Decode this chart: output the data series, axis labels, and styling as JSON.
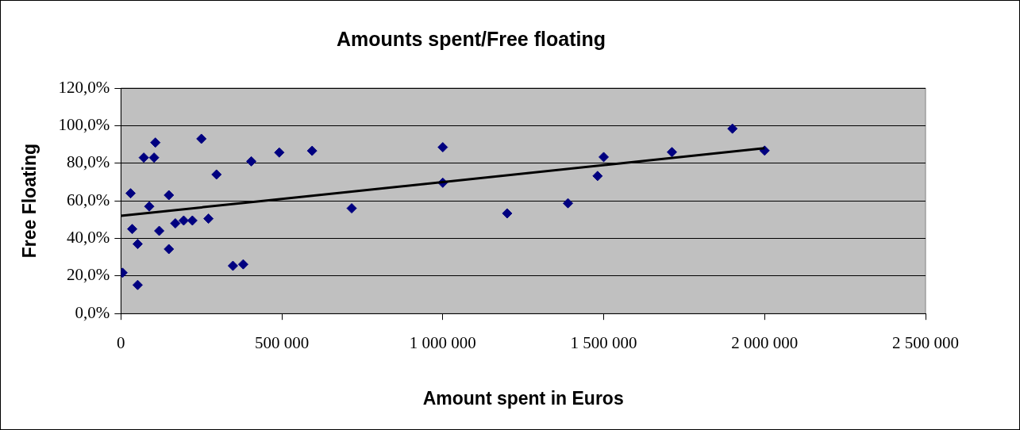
{
  "chart_data": {
    "type": "scatter",
    "title": "Amounts spent/Free floating",
    "xlabel": "Amount spent in Euros",
    "ylabel": "Free Floating",
    "series": [
      {
        "color": "#000080",
        "marker": "diamond",
        "x": [
          5000,
          30000,
          35000,
          52000,
          52000,
          71000,
          88000,
          103000,
          107000,
          119000,
          149000,
          149000,
          169000,
          195000,
          222000,
          250000,
          272000,
          297000,
          348000,
          380000,
          405000,
          492000,
          594000,
          717000,
          1000000,
          1000000,
          1200000,
          1389000,
          1481000,
          1500000,
          1712000,
          1900000,
          2000000
        ],
        "values": [
          21.7,
          64,
          45,
          37,
          15.2,
          83,
          57,
          83,
          91,
          44,
          63,
          34.3,
          48,
          49.5,
          49.5,
          93,
          50.5,
          74,
          25.4,
          26.2,
          81,
          85.7,
          86.6,
          56,
          88.5,
          69.6,
          53.3,
          58.7,
          73.2,
          83.3,
          85.9,
          98.4,
          86.7
        ]
      },
      {
        "type": "line",
        "color": "#000000",
        "marker": "none",
        "x": [
          0,
          2000000
        ],
        "values": [
          52,
          88
        ]
      }
    ],
    "xlim": [
      0,
      2500000
    ],
    "xticks": [
      {
        "value": 0,
        "label": "0"
      },
      {
        "value": 500000,
        "label": "500 000"
      },
      {
        "value": 1000000,
        "label": "1 000 000"
      },
      {
        "value": 1500000,
        "label": "1 500 000"
      },
      {
        "value": 2000000,
        "label": "2 000 000"
      },
      {
        "value": 2500000,
        "label": "2 500 000"
      }
    ],
    "ylim": [
      0,
      120
    ],
    "yticks": [
      {
        "value": 0,
        "label": "0,0%"
      },
      {
        "value": 20,
        "label": "20,0%"
      },
      {
        "value": 40,
        "label": "40,0%"
      },
      {
        "value": 60,
        "label": "60,0%"
      },
      {
        "value": 80,
        "label": "80,0%"
      },
      {
        "value": 100,
        "label": "100,0%"
      },
      {
        "value": 120,
        "label": "120,0%"
      }
    ],
    "grid": "y",
    "legend": false
  }
}
